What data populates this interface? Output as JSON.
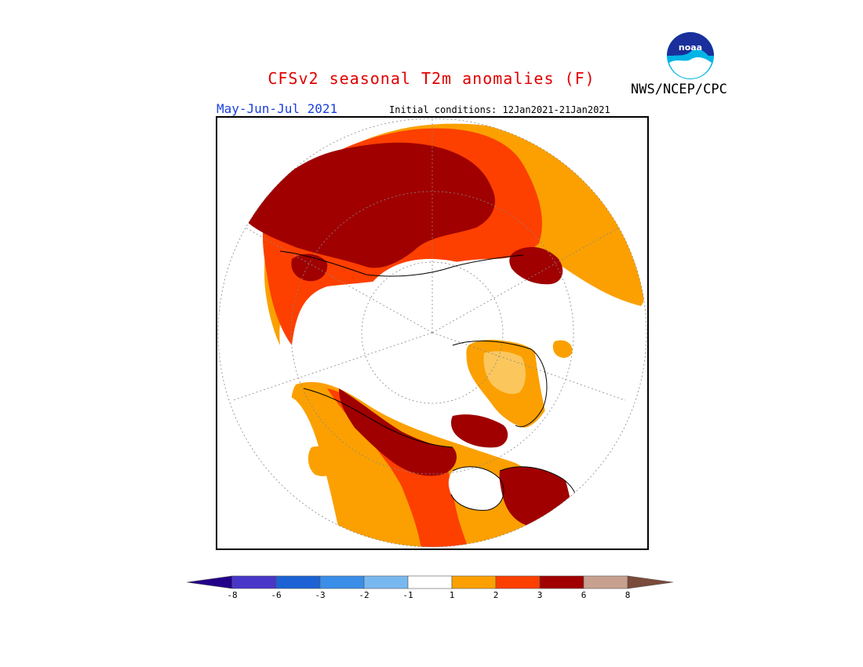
{
  "title": "CFSv2 seasonal T2m anomalies (F)",
  "period": "May-Jun-Jul 2021",
  "initial_conditions": "Initial conditions: 12Jan2021-21Jan2021",
  "agency": "NWS/NCEP/CPC",
  "logo": {
    "text": "noaa",
    "icon": "noaa-logo-icon"
  },
  "map": {
    "projection": "north polar stereographic",
    "levels": [
      {
        "range": "< -8",
        "color": "#22008a"
      },
      {
        "range": "-8 to -6",
        "color": "#4736c8"
      },
      {
        "range": "-6 to -3",
        "color": "#1c62d4"
      },
      {
        "range": "-3 to -2",
        "color": "#3a8ee8"
      },
      {
        "range": "-2 to -1",
        "color": "#78b8f0"
      },
      {
        "range": "-1 to 1",
        "color": "#ffffff"
      },
      {
        "range": "1 to 2",
        "color": "#fba000"
      },
      {
        "range": "2 to 3",
        "color": "#fd3f00"
      },
      {
        "range": "3 to 6",
        "color": "#a00000"
      },
      {
        "range": "6 to 8",
        "color": "#c8a090"
      },
      {
        "range": "> 8",
        "color": "#7a4a3a"
      }
    ]
  },
  "colorbar": {
    "tick_labels": [
      "-8",
      "-6",
      "-3",
      "-2",
      "-1",
      "1",
      "2",
      "3",
      "6",
      "8"
    ]
  }
}
